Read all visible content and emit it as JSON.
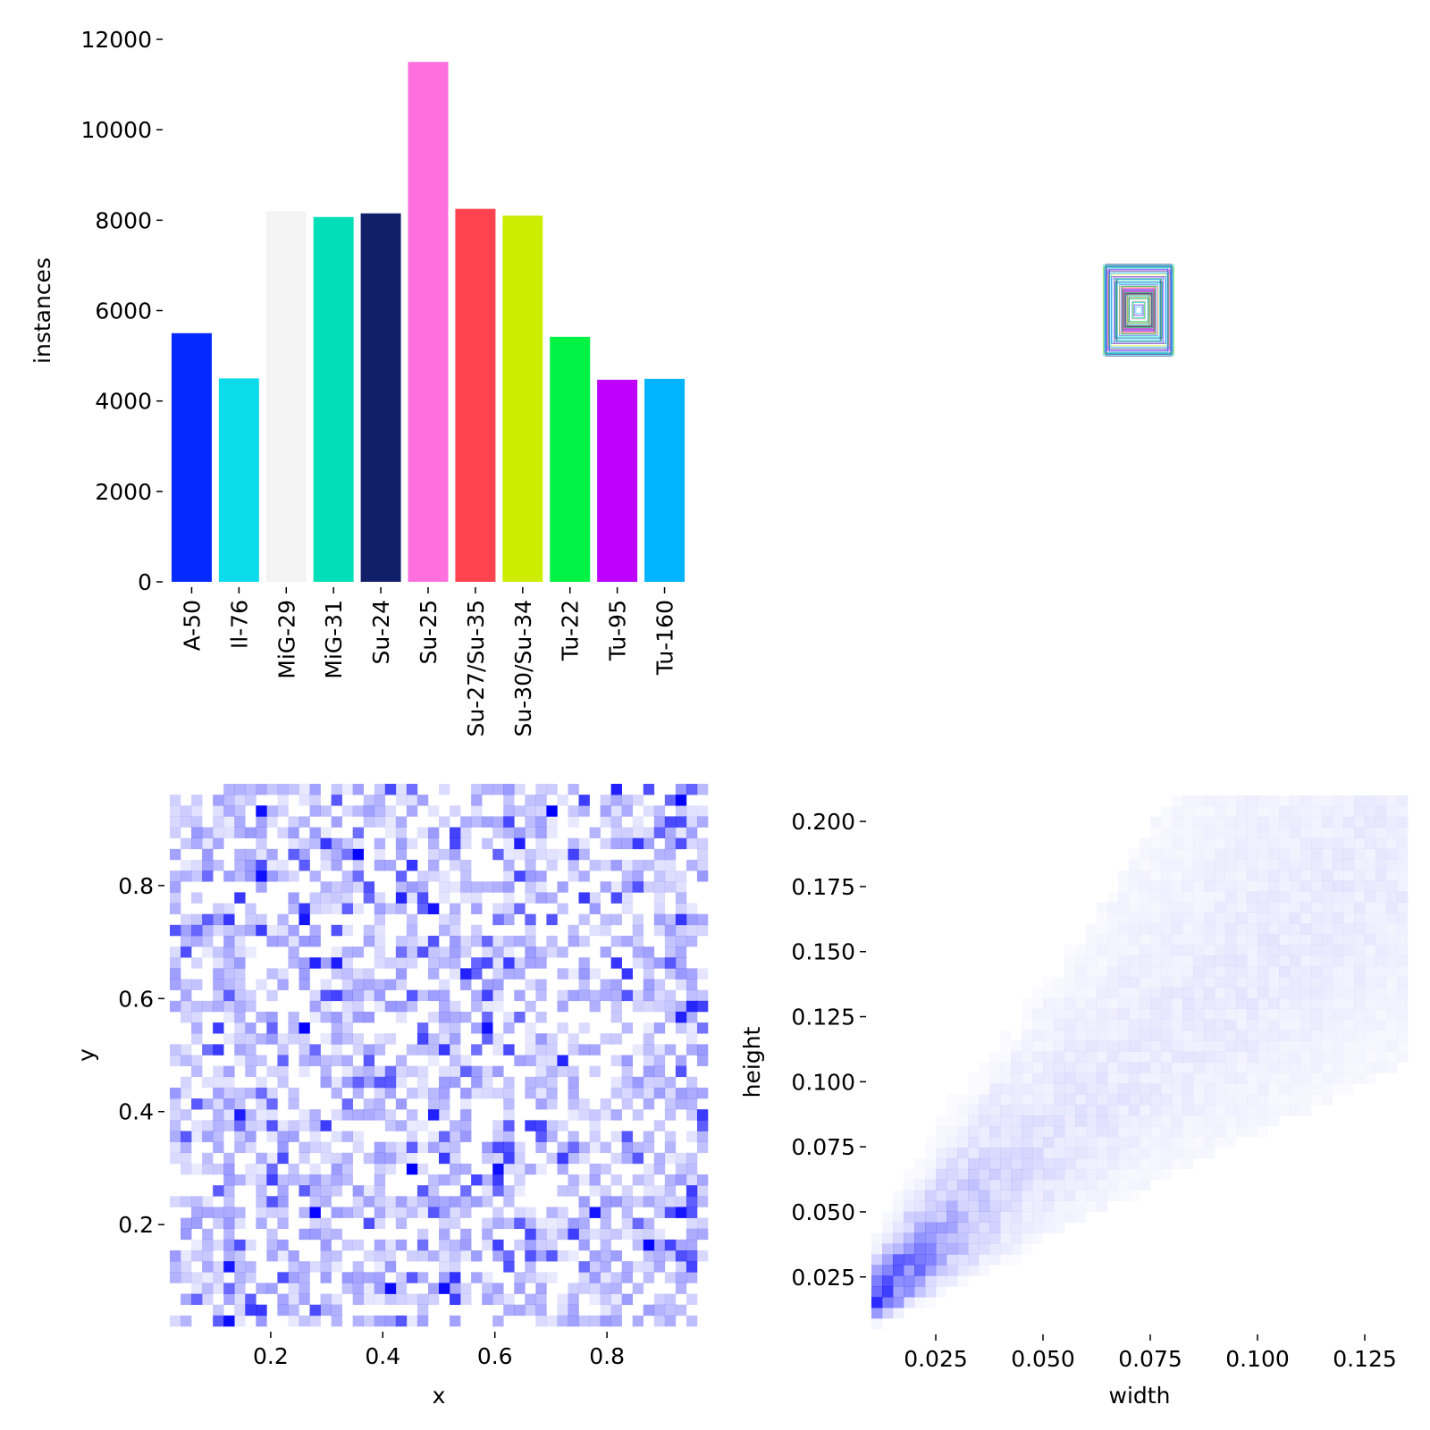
{
  "chart_data": [
    {
      "type": "bar",
      "ylabel": "instances",
      "ylim": [
        0,
        12000
      ],
      "yticks": [
        "0",
        "2000",
        "4000",
        "6000",
        "8000",
        "10000",
        "12000"
      ],
      "categories": [
        "A-50",
        "Il-76",
        "MiG-29",
        "MiG-31",
        "Su-24",
        "Su-25",
        "Su-27/Su-35",
        "Su-30/Su-34",
        "Tu-22",
        "Tu-95",
        "Tu-160"
      ],
      "values": [
        5500,
        4500,
        8200,
        8070,
        8150,
        11500,
        8250,
        8100,
        5420,
        4470,
        4490
      ],
      "colors": [
        "#042AFF",
        "#0BDBEB",
        "#F3F3F3",
        "#00DFB7",
        "#111F68",
        "#FF6FDD",
        "#FF444F",
        "#CCED00",
        "#00F344",
        "#BD00FF",
        "#00B4FF"
      ]
    },
    {
      "type": "other",
      "description_free": true,
      "box_colors": [
        "#042AFF",
        "#0BDBEB",
        "#00DFB7",
        "#111F68",
        "#FF6FDD",
        "#FF444F",
        "#CCED00",
        "#00F344",
        "#BD00FF",
        "#00B4FF"
      ]
    },
    {
      "type": "heatmap",
      "xlabel": "x",
      "ylabel": "y",
      "xticks": [
        "0.2",
        "0.4",
        "0.6",
        "0.8"
      ],
      "yticks": [
        "0.2",
        "0.4",
        "0.6",
        "0.8"
      ],
      "xlim": [
        0.02,
        0.98
      ],
      "ylim": [
        0.02,
        0.98
      ],
      "color": "#0000FF"
    },
    {
      "type": "heatmap",
      "xlabel": "width",
      "ylabel": "height",
      "xticks": [
        "0.025",
        "0.050",
        "0.075",
        "0.100",
        "0.125"
      ],
      "yticks": [
        "0.025",
        "0.050",
        "0.075",
        "0.100",
        "0.125",
        "0.150",
        "0.175",
        "0.200"
      ],
      "xlim": [
        0.01,
        0.135
      ],
      "ylim": [
        0.005,
        0.21
      ],
      "color": "#0000FF"
    }
  ]
}
